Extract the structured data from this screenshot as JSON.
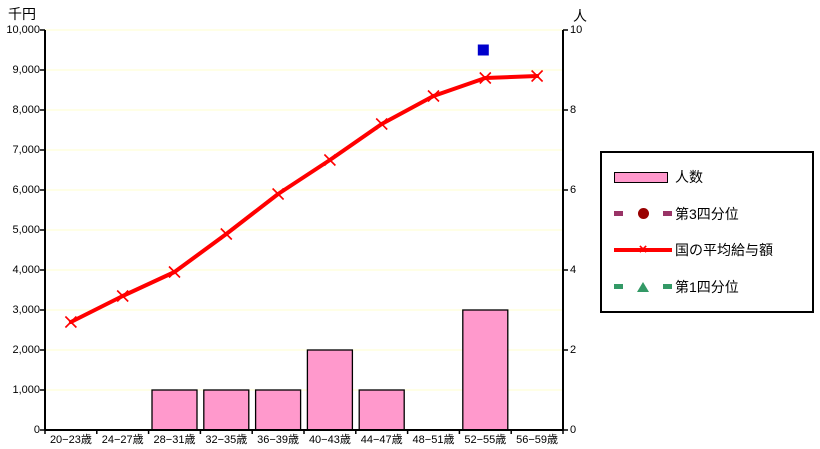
{
  "left_axis": {
    "title": "千円",
    "ticks": [
      "10,000",
      "9,000",
      "8,000",
      "7,000",
      "6,000",
      "5,000",
      "4,000",
      "3,000",
      "2,000",
      "1,000",
      "0"
    ]
  },
  "right_axis": {
    "title": "人",
    "ticks": [
      "10",
      "8",
      "6",
      "4",
      "2",
      "0"
    ]
  },
  "chart_data": {
    "type": "combo",
    "categories": [
      "20−23歳",
      "24−27歳",
      "28−31歳",
      "32−35歳",
      "36−39歳",
      "40−43歳",
      "44−47歳",
      "48−51歳",
      "52−55歳",
      "56−59歳"
    ],
    "series": [
      {
        "name": "人数",
        "type": "bar",
        "axis": "right",
        "color": "#FF99CC",
        "border_color": "#000000",
        "values": [
          0,
          0,
          1,
          1,
          1,
          2,
          1,
          0,
          3,
          0
        ]
      },
      {
        "name": "国の平均給与額",
        "type": "line",
        "axis": "left",
        "color": "#FF0000",
        "marker": "x",
        "values": [
          2700,
          3350,
          3950,
          4900,
          5900,
          6750,
          7650,
          8350,
          8800,
          8850
        ]
      }
    ],
    "extra_points": [
      {
        "name": "blue-square-marker",
        "category": "52−55歳",
        "axis": "right",
        "value": 9.5,
        "color": "#0000CC"
      }
    ],
    "left_ylabel": "千円",
    "right_ylabel": "人",
    "left_ylim": [
      0,
      10000
    ],
    "right_ylim": [
      0,
      10
    ],
    "gridline_step_left": 1000,
    "grid_color": "#FFFFCC",
    "axis_color": "#000000",
    "legend_position": "right"
  },
  "legend": {
    "items": [
      {
        "label": "人数",
        "type": "bar-swatch",
        "color": "#FF99CC"
      },
      {
        "label": "第3四分位",
        "type": "dashed-line-circle",
        "line_color": "#993366",
        "marker_color": "#990000"
      },
      {
        "label": "国の平均給与額",
        "type": "line-x-marker",
        "color": "#FF0000"
      },
      {
        "label": "第1四分位",
        "type": "dashed-line-triangle",
        "line_color": "#339966",
        "marker_color": "#339966"
      }
    ]
  }
}
